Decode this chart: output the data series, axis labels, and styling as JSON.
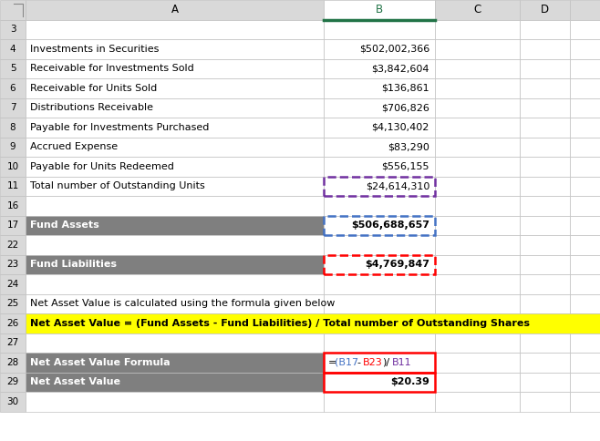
{
  "col_labels": [
    "",
    "A",
    "B",
    "C",
    "D"
  ],
  "rows": [
    {
      "row": "3",
      "col_a": "",
      "col_b": "",
      "bg_a": "#ffffff",
      "bg_b": "#ffffff",
      "bold_a": false,
      "bold_b": false,
      "align_b": "right"
    },
    {
      "row": "4",
      "col_a": "Investments in Securities",
      "col_b": "$502,002,366",
      "bg_a": "#ffffff",
      "bg_b": "#ffffff",
      "bold_a": false,
      "bold_b": false,
      "align_b": "right"
    },
    {
      "row": "5",
      "col_a": "Receivable for Investments Sold",
      "col_b": "$3,842,604",
      "bg_a": "#ffffff",
      "bg_b": "#ffffff",
      "bold_a": false,
      "bold_b": false,
      "align_b": "right"
    },
    {
      "row": "6",
      "col_a": "Receivable for Units Sold",
      "col_b": "$136,861",
      "bg_a": "#ffffff",
      "bg_b": "#ffffff",
      "bold_a": false,
      "bold_b": false,
      "align_b": "right"
    },
    {
      "row": "7",
      "col_a": "Distributions Receivable",
      "col_b": "$706,826",
      "bg_a": "#ffffff",
      "bg_b": "#ffffff",
      "bold_a": false,
      "bold_b": false,
      "align_b": "right"
    },
    {
      "row": "8",
      "col_a": "Payable for Investments Purchased",
      "col_b": "$4,130,402",
      "bg_a": "#ffffff",
      "bg_b": "#ffffff",
      "bold_a": false,
      "bold_b": false,
      "align_b": "right"
    },
    {
      "row": "9",
      "col_a": "Accrued Expense",
      "col_b": "$83,290",
      "bg_a": "#ffffff",
      "bg_b": "#ffffff",
      "bold_a": false,
      "bold_b": false,
      "align_b": "right"
    },
    {
      "row": "10",
      "col_a": "Payable for Units Redeemed",
      "col_b": "$556,155",
      "bg_a": "#ffffff",
      "bg_b": "#ffffff",
      "bold_a": false,
      "bold_b": false,
      "align_b": "right"
    },
    {
      "row": "11",
      "col_a": "Total number of Outstanding Units",
      "col_b": "$24,614,310",
      "bg_a": "#ffffff",
      "bg_b": "#ffffff",
      "bold_a": false,
      "bold_b": false,
      "align_b": "right"
    },
    {
      "row": "16",
      "col_a": "",
      "col_b": "",
      "bg_a": "#ffffff",
      "bg_b": "#ffffff",
      "bold_a": false,
      "bold_b": false,
      "align_b": "right"
    },
    {
      "row": "17",
      "col_a": "Fund Assets",
      "col_b": "$506,688,657",
      "bg_a": "#7f7f7f",
      "bg_b": "#ffffff",
      "bold_a": true,
      "bold_b": true,
      "align_b": "right"
    },
    {
      "row": "22",
      "col_a": "",
      "col_b": "",
      "bg_a": "#ffffff",
      "bg_b": "#ffffff",
      "bold_a": false,
      "bold_b": false,
      "align_b": "right"
    },
    {
      "row": "23",
      "col_a": "Fund Liabilities",
      "col_b": "$4,769,847",
      "bg_a": "#7f7f7f",
      "bg_b": "#ffffff",
      "bold_a": true,
      "bold_b": true,
      "align_b": "right"
    },
    {
      "row": "24",
      "col_a": "",
      "col_b": "",
      "bg_a": "#ffffff",
      "bg_b": "#ffffff",
      "bold_a": false,
      "bold_b": false,
      "align_b": "right"
    },
    {
      "row": "25",
      "col_a": "Net Asset Value is calculated using the formula given below",
      "col_b": "",
      "bg_a": "#ffffff",
      "bg_b": "#ffffff",
      "bold_a": false,
      "bold_b": false,
      "align_b": "right"
    },
    {
      "row": "26",
      "col_a": "Net Asset Value = (Fund Assets - Fund Liabilities) / Total number of Outstanding Shares",
      "col_b": "",
      "bg_a": "#ffff00",
      "bg_b": "#ffff00",
      "bold_a": true,
      "bold_b": false,
      "align_b": "right"
    },
    {
      "row": "27",
      "col_a": "",
      "col_b": "",
      "bg_a": "#ffffff",
      "bg_b": "#ffffff",
      "bold_a": false,
      "bold_b": false,
      "align_b": "right"
    },
    {
      "row": "28",
      "col_a": "Net Asset Value Formula",
      "col_b": "=(B17-B23)/B11",
      "bg_a": "#7f7f7f",
      "bg_b": "#ffffff",
      "bold_a": true,
      "bold_b": false,
      "align_b": "left"
    },
    {
      "row": "29",
      "col_a": "Net Asset Value",
      "col_b": "$20.39",
      "bg_a": "#7f7f7f",
      "bg_b": "#ffffff",
      "bold_a": true,
      "bold_b": true,
      "align_b": "right"
    },
    {
      "row": "30",
      "col_a": "",
      "col_b": "",
      "bg_a": "#ffffff",
      "bg_b": "#ffffff",
      "bold_a": false,
      "bold_b": false,
      "align_b": "right"
    }
  ],
  "header_bg": "#d9d9d9",
  "grid_color": "#c0c0c0",
  "b17_border_color": "#4472c4",
  "b23_border_color": "#ff0000",
  "b11_border_color": "#7030a0",
  "b28_border_color": "#ff0000",
  "b29_border_color": "#ff0000",
  "formula_b17_color": "#4472c4",
  "formula_b23_color": "#ff0000",
  "formula_b11_color": "#7030a0",
  "green_header_color": "#217346",
  "fig_width": 6.58,
  "fig_height": 4.84,
  "dpi": 100
}
